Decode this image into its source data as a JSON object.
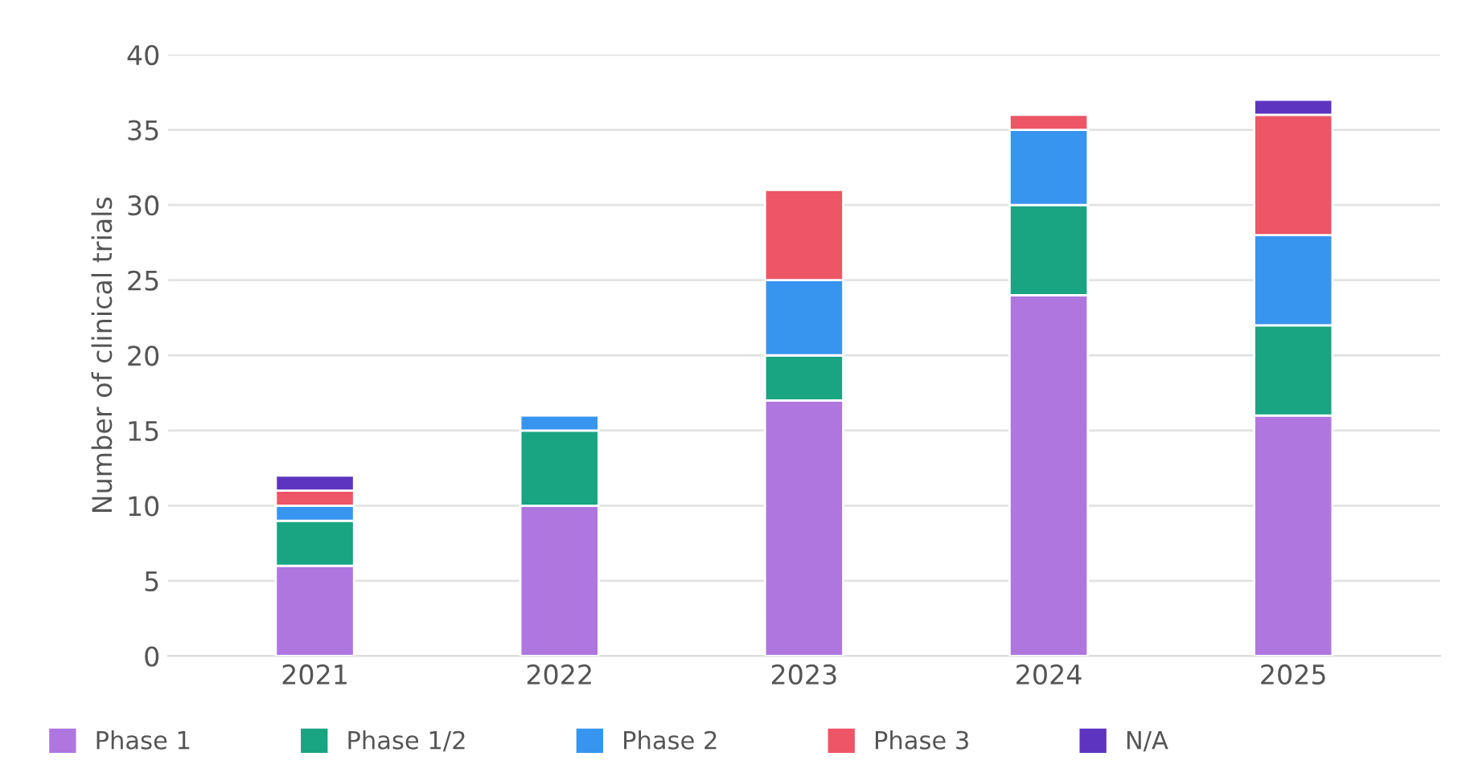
{
  "chart_data": {
    "type": "bar",
    "stacked": true,
    "ylabel": "Number of clinical trials",
    "categories": [
      "2021",
      "2022",
      "2023",
      "2024",
      "2025"
    ],
    "series": [
      {
        "name": "Phase 1",
        "color": "#af76e0",
        "values": [
          6,
          10,
          17,
          24,
          16
        ]
      },
      {
        "name": "Phase 1/2",
        "color": "#19a482",
        "values": [
          3,
          5,
          3,
          6,
          6
        ]
      },
      {
        "name": "Phase 2",
        "color": "#3795f0",
        "values": [
          1,
          1,
          5,
          5,
          6
        ]
      },
      {
        "name": "Phase 3",
        "color": "#ee5566",
        "values": [
          1,
          null,
          6,
          1,
          8
        ]
      },
      {
        "name": "N/A",
        "color": "#5d34c0",
        "values": [
          1,
          null,
          null,
          null,
          1
        ]
      }
    ],
    "ylim": [
      0,
      40
    ],
    "yticks": [
      0,
      5,
      10,
      15,
      20,
      25,
      30,
      35,
      40
    ],
    "grid": "y",
    "legend": "bottom"
  }
}
